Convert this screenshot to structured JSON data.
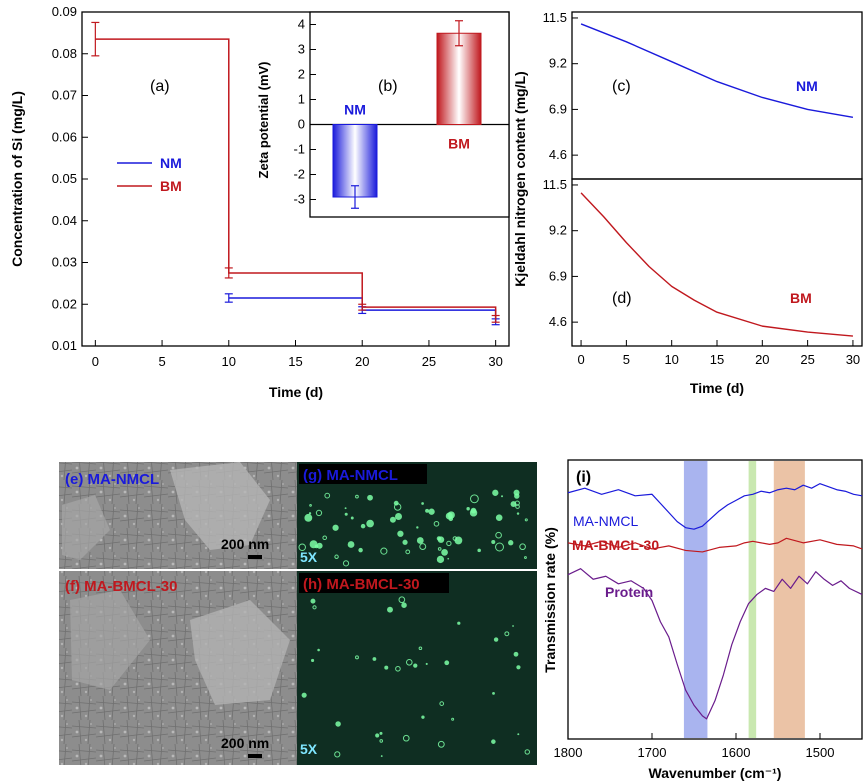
{
  "colors": {
    "nm": "#1a1adb",
    "bm": "#c0181e",
    "protein": "#6a1c8c",
    "fluor_bg": "#0f2e22",
    "fluor_dot": "#7dffa6",
    "band_blue": "#9aa7ec",
    "band_green": "#bfe4a2",
    "band_orange": "#e7b896"
  },
  "panels": {
    "e": {
      "label": "(e) MA-NMCL",
      "scale": "200 nm"
    },
    "f": {
      "label": "(f) MA-BMCL-30",
      "scale": "200 nm"
    },
    "g": {
      "label": "(g) MA-NMCL",
      "mag": "5X"
    },
    "h": {
      "label": "(h) MA-BMCL-30",
      "mag": "5X"
    }
  },
  "chart_data": [
    {
      "id": "a",
      "type": "line",
      "panel_label": "(a)",
      "xlabel": "Time (d)",
      "ylabel": "Concentration of Si (mg/L)",
      "xlim": [
        -1,
        31
      ],
      "ylim": [
        0.01,
        0.09
      ],
      "xticks": [
        "0",
        "5",
        "10",
        "15",
        "20",
        "25",
        "30"
      ],
      "yticks": [
        "0.01",
        "0.02",
        "0.03",
        "0.04",
        "0.05",
        "0.06",
        "0.07",
        "0.08",
        "0.09"
      ],
      "legend": [
        "NM",
        "BM"
      ],
      "step": true,
      "series": [
        {
          "name": "NM",
          "x": [
            10,
            20,
            30
          ],
          "y": [
            0.0215,
            0.0186,
            0.0158
          ],
          "err": [
            0.001,
            0.0008,
            0.0007
          ]
        },
        {
          "name": "BM",
          "x": [
            0,
            10,
            20,
            30
          ],
          "y": [
            0.0835,
            0.0275,
            0.0193,
            0.0165
          ],
          "err": [
            0.004,
            0.0012,
            0.0007,
            0.0008
          ]
        }
      ]
    },
    {
      "id": "b",
      "type": "bar",
      "panel_label": "(b)",
      "ylabel": "Zeta potential (mV)",
      "ylim": [
        -3.7,
        4.5
      ],
      "yticks": [
        "-3",
        "-2",
        "-1",
        "0",
        "1",
        "2",
        "3",
        "4"
      ],
      "categories": [
        "NM",
        "BM"
      ],
      "values": [
        -2.9,
        3.65
      ],
      "err": [
        0.45,
        0.5
      ]
    },
    {
      "id": "c",
      "type": "line",
      "panel_label": "(c)",
      "ylim": [
        3.4,
        11.8
      ],
      "yticks": [
        "4.6",
        "6.9",
        "9.2",
        "11.5"
      ],
      "series": [
        {
          "name": "NM",
          "x": [
            0,
            5,
            10,
            15,
            20,
            25,
            30
          ],
          "y": [
            11.2,
            10.3,
            9.3,
            8.3,
            7.5,
            6.9,
            6.5
          ]
        }
      ]
    },
    {
      "id": "d",
      "type": "line",
      "panel_label": "(d)",
      "xlabel": "Time (d)",
      "ylabel": "Kjeldahl nitrogen content (mg/L)",
      "xlim": [
        -1,
        31
      ],
      "ylim": [
        3.4,
        11.8
      ],
      "xticks": [
        "0",
        "5",
        "10",
        "15",
        "20",
        "25",
        "30"
      ],
      "yticks": [
        "4.6",
        "6.9",
        "9.2",
        "11.5"
      ],
      "series": [
        {
          "name": "BM",
          "x": [
            0,
            2.5,
            5,
            7.5,
            10,
            12.5,
            15,
            20,
            25,
            30
          ],
          "y": [
            11.1,
            9.9,
            8.6,
            7.4,
            6.4,
            5.7,
            5.1,
            4.4,
            4.1,
            3.9
          ]
        }
      ]
    },
    {
      "id": "i",
      "type": "line",
      "panel_label": "(i)",
      "xlabel": "Wavenumber (cm⁻¹)",
      "ylabel": "Transmission rate (%)",
      "xlim": [
        1800,
        1450
      ],
      "xticks": [
        "1800",
        "1700",
        "1600",
        "1500"
      ],
      "bands": [
        {
          "from": 1662,
          "to": 1634,
          "color": "band_blue"
        },
        {
          "from": 1585,
          "to": 1576,
          "color": "band_green"
        },
        {
          "from": 1555,
          "to": 1518,
          "color": "band_orange"
        }
      ],
      "series": [
        {
          "name": "MA-NMCL",
          "x": [
            1800,
            1780,
            1760,
            1740,
            1720,
            1700,
            1690,
            1680,
            1670,
            1660,
            1650,
            1640,
            1630,
            1620,
            1610,
            1600,
            1590,
            1580,
            1570,
            1560,
            1550,
            1540,
            1530,
            1520,
            1510,
            1500,
            1490,
            1480,
            1470,
            1460,
            1450
          ],
          "y": [
            0.85,
            0.88,
            0.84,
            0.87,
            0.83,
            0.84,
            0.78,
            0.72,
            0.66,
            0.62,
            0.61,
            0.63,
            0.68,
            0.73,
            0.77,
            0.8,
            0.83,
            0.84,
            0.86,
            0.85,
            0.87,
            0.88,
            0.87,
            0.9,
            0.88,
            0.91,
            0.89,
            0.87,
            0.86,
            0.84,
            0.83
          ]
        },
        {
          "name": "MA-BMCL-30",
          "x": [
            1800,
            1780,
            1760,
            1740,
            1720,
            1700,
            1680,
            1660,
            1640,
            1620,
            1600,
            1590,
            1580,
            1570,
            1560,
            1550,
            1540,
            1520,
            1500,
            1480,
            1460,
            1450
          ],
          "y": [
            0.52,
            0.5,
            0.53,
            0.49,
            0.52,
            0.48,
            0.5,
            0.47,
            0.46,
            0.49,
            0.5,
            0.52,
            0.53,
            0.52,
            0.51,
            0.52,
            0.55,
            0.52,
            0.54,
            0.51,
            0.5,
            0.48
          ]
        },
        {
          "name": "Protein",
          "x": [
            1800,
            1785,
            1770,
            1755,
            1740,
            1725,
            1710,
            1700,
            1690,
            1680,
            1670,
            1660,
            1650,
            1640,
            1635,
            1625,
            1615,
            1605,
            1595,
            1585,
            1575,
            1565,
            1555,
            1545,
            1535,
            1525,
            1515,
            1505,
            1495,
            1485,
            1475,
            1465,
            1450
          ],
          "y": [
            0.31,
            0.35,
            0.28,
            0.3,
            0.25,
            0.27,
            0.22,
            0.14,
            0.0,
            -0.1,
            -0.28,
            -0.45,
            -0.55,
            -0.62,
            -0.64,
            -0.52,
            -0.35,
            -0.15,
            0.0,
            0.12,
            0.18,
            0.22,
            0.2,
            0.28,
            0.22,
            0.3,
            0.25,
            0.33,
            0.28,
            0.24,
            0.27,
            0.22,
            0.18
          ]
        }
      ]
    }
  ]
}
